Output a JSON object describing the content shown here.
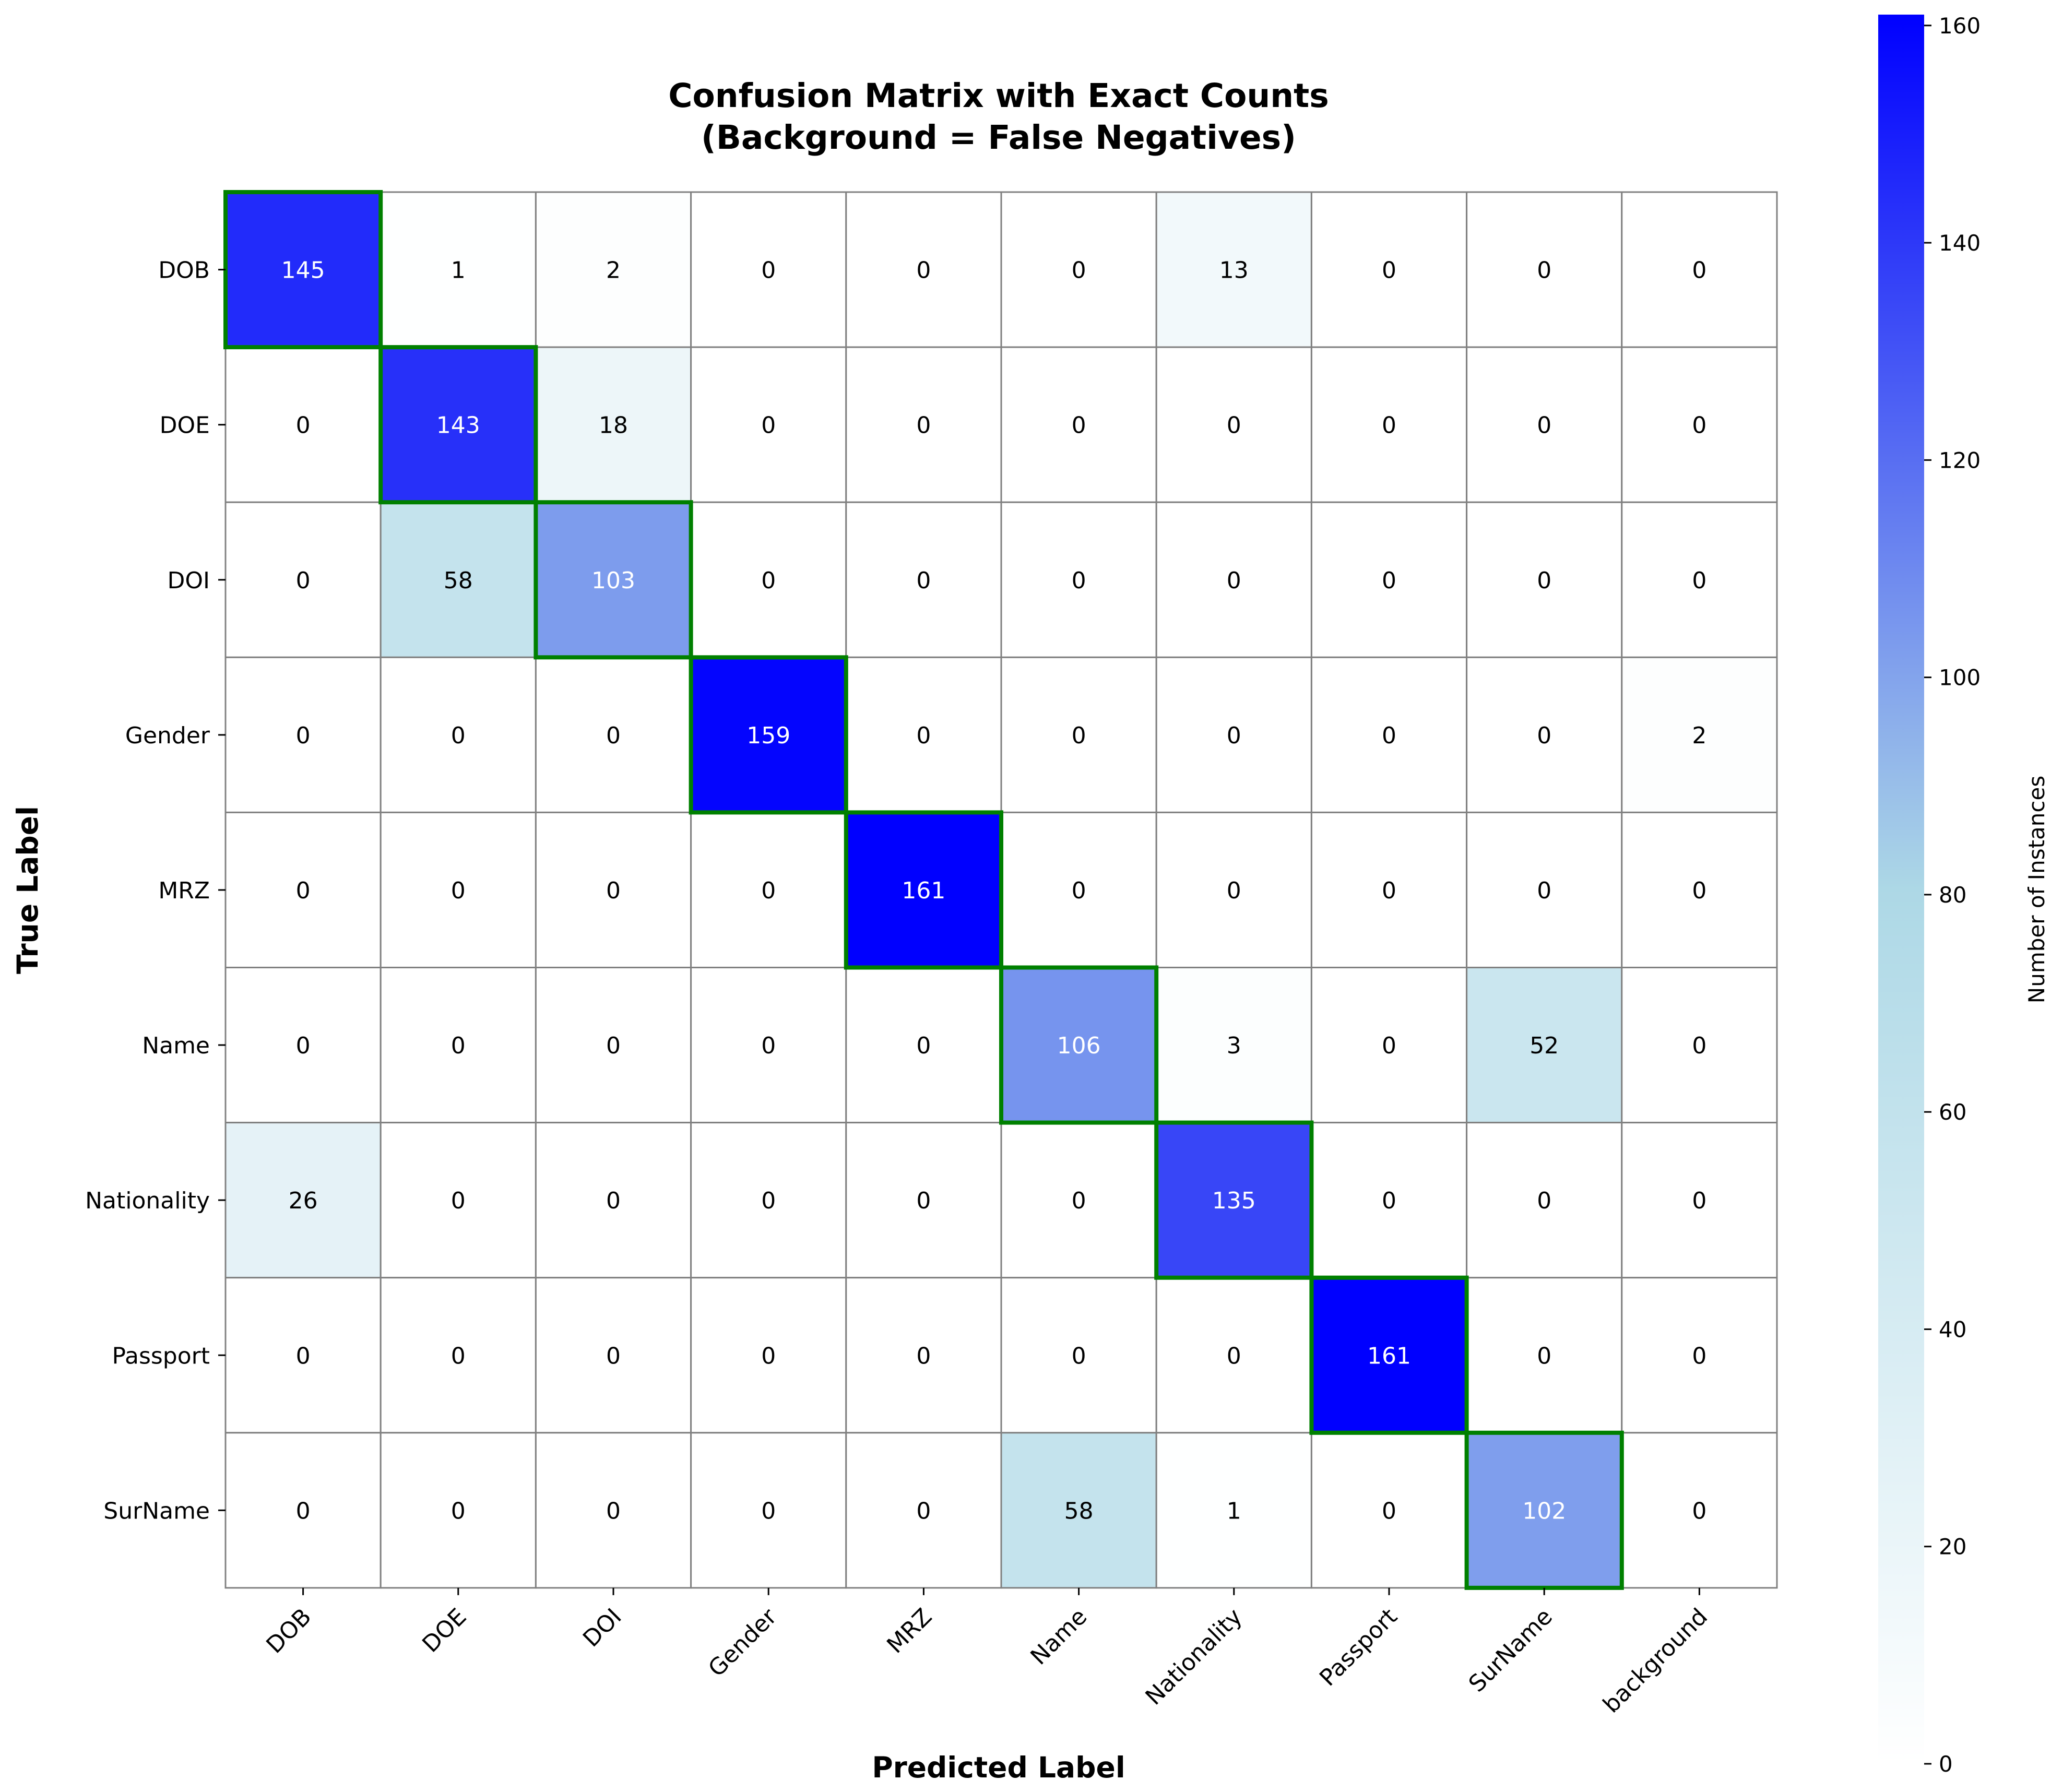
{
  "chart_data": {
    "type": "heatmap",
    "title_lines": [
      "Confusion Matrix with Exact Counts",
      "(Background = False Negatives)"
    ],
    "xlabel": "Predicted Label",
    "ylabel": "True Label",
    "x_categories": [
      "DOB",
      "DOE",
      "DOI",
      "Gender",
      "MRZ",
      "Name",
      "Nationality",
      "Passport",
      "SurName",
      "background"
    ],
    "y_categories": [
      "DOB",
      "DOE",
      "DOI",
      "Gender",
      "MRZ",
      "Name",
      "Nationality",
      "Passport",
      "SurName"
    ],
    "values": [
      [
        145,
        1,
        2,
        0,
        0,
        0,
        13,
        0,
        0,
        0
      ],
      [
        0,
        143,
        18,
        0,
        0,
        0,
        0,
        0,
        0,
        0
      ],
      [
        0,
        58,
        103,
        0,
        0,
        0,
        0,
        0,
        0,
        0
      ],
      [
        0,
        0,
        0,
        159,
        0,
        0,
        0,
        0,
        0,
        2
      ],
      [
        0,
        0,
        0,
        0,
        161,
        0,
        0,
        0,
        0,
        0
      ],
      [
        0,
        0,
        0,
        0,
        0,
        106,
        3,
        0,
        52,
        0
      ],
      [
        26,
        0,
        0,
        0,
        0,
        0,
        135,
        0,
        0,
        0
      ],
      [
        0,
        0,
        0,
        0,
        0,
        0,
        0,
        161,
        0,
        0
      ],
      [
        0,
        0,
        0,
        0,
        0,
        58,
        1,
        0,
        102,
        0
      ]
    ],
    "highlight": "diagonal",
    "colorbar": {
      "label": "Number of Instances",
      "range": [
        0,
        161
      ],
      "ticks": [
        0,
        20,
        40,
        60,
        80,
        100,
        120,
        140,
        160
      ],
      "colors": [
        "#ffffff",
        "#add8e6",
        "#0000ff"
      ]
    },
    "colors": {
      "grid": "#808080",
      "highlight": "#008000",
      "text_dark": "#000000",
      "text_light": "#ffffff"
    }
  }
}
